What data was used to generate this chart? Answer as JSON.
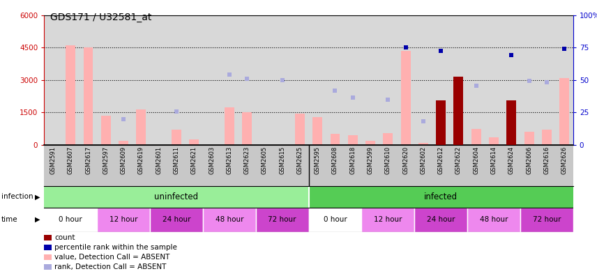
{
  "title": "GDS171 / U32581_at",
  "samples": [
    "GSM2591",
    "GSM2607",
    "GSM2617",
    "GSM2597",
    "GSM2609",
    "GSM2619",
    "GSM2601",
    "GSM2611",
    "GSM2621",
    "GSM2603",
    "GSM2613",
    "GSM2623",
    "GSM2605",
    "GSM2615",
    "GSM2625",
    "GSM2595",
    "GSM2608",
    "GSM2618",
    "GSM2599",
    "GSM2610",
    "GSM2620",
    "GSM2602",
    "GSM2612",
    "GSM2622",
    "GSM2604",
    "GSM2614",
    "GSM2624",
    "GSM2606",
    "GSM2616",
    "GSM2626"
  ],
  "pink_bar_values": [
    0,
    4600,
    4500,
    1350,
    200,
    1650,
    0,
    700,
    250,
    0,
    1750,
    1500,
    0,
    0,
    1450,
    1300,
    500,
    450,
    200,
    550,
    4350,
    100,
    2000,
    3100,
    750,
    350,
    2000,
    600,
    700,
    3100
  ],
  "light_blue_rank": [
    null,
    null,
    null,
    null,
    1200,
    null,
    null,
    1550,
    null,
    null,
    3250,
    3050,
    null,
    3000,
    null,
    null,
    2500,
    2200,
    null,
    2100,
    null,
    1100,
    null,
    null,
    2750,
    null,
    null,
    2950,
    2900,
    null
  ],
  "dark_red_count": [
    null,
    null,
    null,
    null,
    null,
    null,
    null,
    null,
    null,
    null,
    null,
    null,
    null,
    null,
    null,
    null,
    null,
    null,
    null,
    null,
    null,
    null,
    2050,
    3150,
    null,
    null,
    2050,
    null,
    null,
    null
  ],
  "dark_blue_percentile": [
    null,
    null,
    null,
    null,
    null,
    null,
    null,
    null,
    null,
    null,
    null,
    null,
    null,
    null,
    null,
    null,
    null,
    null,
    null,
    null,
    4500,
    null,
    4350,
    null,
    null,
    null,
    4150,
    null,
    null,
    4450
  ],
  "ylim_left": [
    0,
    6000
  ],
  "yticks_left": [
    0,
    1500,
    3000,
    4500,
    6000
  ],
  "yticks_right": [
    0,
    25,
    50,
    75,
    100
  ],
  "left_axis_color": "#cc0000",
  "right_axis_color": "#0000cc",
  "pink_bar_color": "#ffb0b0",
  "light_blue_color": "#aaaadd",
  "dark_red_color": "#990000",
  "dark_blue_color": "#0000aa",
  "chart_bg": "#d8d8d8",
  "label_bg": "#c8c8c8",
  "infection_groups": [
    {
      "label": "uninfected",
      "start": 0,
      "end": 15,
      "color": "#99ee99"
    },
    {
      "label": "infected",
      "start": 15,
      "end": 30,
      "color": "#55cc55"
    }
  ],
  "time_groups": [
    {
      "label": "0 hour",
      "start": 0,
      "end": 3,
      "color": "#ffffff"
    },
    {
      "label": "12 hour",
      "start": 3,
      "end": 6,
      "color": "#ee88ee"
    },
    {
      "label": "24 hour",
      "start": 6,
      "end": 9,
      "color": "#cc44cc"
    },
    {
      "label": "48 hour",
      "start": 9,
      "end": 12,
      "color": "#ee88ee"
    },
    {
      "label": "72 hour",
      "start": 12,
      "end": 15,
      "color": "#cc44cc"
    },
    {
      "label": "0 hour",
      "start": 15,
      "end": 18,
      "color": "#ffffff"
    },
    {
      "label": "12 hour",
      "start": 18,
      "end": 21,
      "color": "#ee88ee"
    },
    {
      "label": "24 hour",
      "start": 21,
      "end": 24,
      "color": "#cc44cc"
    },
    {
      "label": "48 hour",
      "start": 24,
      "end": 27,
      "color": "#ee88ee"
    },
    {
      "label": "72 hour",
      "start": 27,
      "end": 30,
      "color": "#cc44cc"
    }
  ],
  "legend_items": [
    {
      "label": "count",
      "color": "#990000",
      "marker": "s"
    },
    {
      "label": "percentile rank within the sample",
      "color": "#0000aa",
      "marker": "s"
    },
    {
      "label": "value, Detection Call = ABSENT",
      "color": "#ffb0b0",
      "marker": "s"
    },
    {
      "label": "rank, Detection Call = ABSENT",
      "color": "#aaaadd",
      "marker": "s"
    }
  ]
}
